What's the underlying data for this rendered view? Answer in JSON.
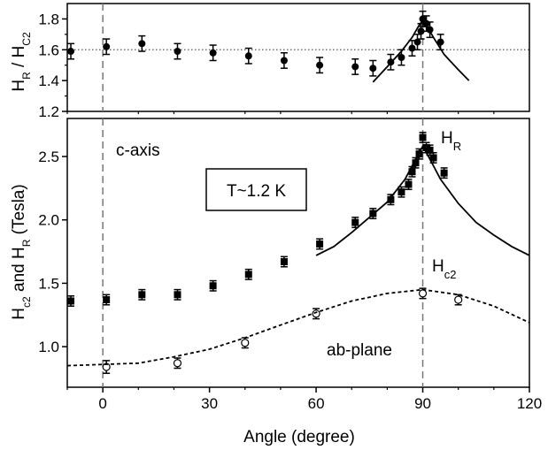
{
  "chart_data": [
    {
      "panel": "top",
      "type": "scatter",
      "ylabel": "H_R / H_C2",
      "ylim": [
        1.2,
        1.9
      ],
      "xlim": [
        -10,
        120
      ],
      "yticks": [
        1.2,
        1.4,
        1.6,
        1.8
      ],
      "reference_line_y": 1.6,
      "reference_line_style": "dotted",
      "vertical_lines_x": [
        0,
        90
      ],
      "series": [
        {
          "marker": "filled-circle",
          "points": [
            {
              "x": -9,
              "y": 1.59,
              "err": 0.05
            },
            {
              "x": 1,
              "y": 1.62,
              "err": 0.05
            },
            {
              "x": 11,
              "y": 1.64,
              "err": 0.05
            },
            {
              "x": 21,
              "y": 1.59,
              "err": 0.05
            },
            {
              "x": 31,
              "y": 1.58,
              "err": 0.05
            },
            {
              "x": 41,
              "y": 1.56,
              "err": 0.05
            },
            {
              "x": 51,
              "y": 1.53,
              "err": 0.05
            },
            {
              "x": 61,
              "y": 1.5,
              "err": 0.05
            },
            {
              "x": 71,
              "y": 1.49,
              "err": 0.05
            },
            {
              "x": 76,
              "y": 1.48,
              "err": 0.05
            },
            {
              "x": 81,
              "y": 1.52,
              "err": 0.05
            },
            {
              "x": 84,
              "y": 1.55,
              "err": 0.05
            },
            {
              "x": 87,
              "y": 1.61,
              "err": 0.05
            },
            {
              "x": 88.5,
              "y": 1.65,
              "err": 0.05
            },
            {
              "x": 89.5,
              "y": 1.72,
              "err": 0.05
            },
            {
              "x": 90,
              "y": 1.8,
              "err": 0.05
            },
            {
              "x": 91,
              "y": 1.77,
              "err": 0.05
            },
            {
              "x": 92,
              "y": 1.73,
              "err": 0.05
            },
            {
              "x": 95,
              "y": 1.65,
              "err": 0.05
            }
          ]
        },
        {
          "type": "line",
          "style": "solid",
          "points": [
            [
              76,
              1.39
            ],
            [
              80,
              1.49
            ],
            [
              84,
              1.59
            ],
            [
              87,
              1.68
            ],
            [
              89,
              1.76
            ],
            [
              90,
              1.79
            ],
            [
              91,
              1.76
            ],
            [
              93,
              1.68
            ],
            [
              96,
              1.57
            ],
            [
              100,
              1.47
            ],
            [
              103,
              1.4
            ]
          ]
        }
      ]
    },
    {
      "panel": "bottom",
      "type": "scatter",
      "xlabel": "Angle (degree)",
      "ylabel": "H_c2 and H_R (Tesla)",
      "xlim": [
        -10,
        120
      ],
      "ylim": [
        0.68,
        2.8
      ],
      "xticks": [
        0,
        30,
        60,
        90,
        120
      ],
      "yticks": [
        1.0,
        1.5,
        2.0,
        2.5
      ],
      "vertical_lines_x": [
        0,
        90
      ],
      "annotations": {
        "c_axis": "c-axis",
        "ab_plane": "ab-plane",
        "temperature": "T~1.2 K",
        "hr_main": "H",
        "hr_sub": "R",
        "hc2_main": "H",
        "hc2_sub": "c2"
      },
      "series": [
        {
          "label": "H_R",
          "marker": "filled-square",
          "points": [
            {
              "x": -9,
              "y": 1.36,
              "err": 0.04
            },
            {
              "x": 1,
              "y": 1.37,
              "err": 0.04
            },
            {
              "x": 11,
              "y": 1.41,
              "err": 0.04
            },
            {
              "x": 21,
              "y": 1.41,
              "err": 0.04
            },
            {
              "x": 31,
              "y": 1.48,
              "err": 0.04
            },
            {
              "x": 41,
              "y": 1.57,
              "err": 0.04
            },
            {
              "x": 51,
              "y": 1.67,
              "err": 0.04
            },
            {
              "x": 61,
              "y": 1.81,
              "err": 0.04
            },
            {
              "x": 71,
              "y": 1.98,
              "err": 0.04
            },
            {
              "x": 76,
              "y": 2.05,
              "err": 0.04
            },
            {
              "x": 81,
              "y": 2.16,
              "err": 0.04
            },
            {
              "x": 84,
              "y": 2.22,
              "err": 0.04
            },
            {
              "x": 86,
              "y": 2.28,
              "err": 0.04
            },
            {
              "x": 87,
              "y": 2.38,
              "err": 0.04
            },
            {
              "x": 88,
              "y": 2.45,
              "err": 0.04
            },
            {
              "x": 89,
              "y": 2.52,
              "err": 0.04
            },
            {
              "x": 90,
              "y": 2.65,
              "err": 0.04
            },
            {
              "x": 91,
              "y": 2.57,
              "err": 0.04
            },
            {
              "x": 92,
              "y": 2.55,
              "err": 0.04
            },
            {
              "x": 93,
              "y": 2.49,
              "err": 0.04
            },
            {
              "x": 96,
              "y": 2.37,
              "err": 0.04
            }
          ]
        },
        {
          "type": "line",
          "style": "solid",
          "points": [
            [
              60,
              1.72
            ],
            [
              65,
              1.79
            ],
            [
              70,
              1.9
            ],
            [
              75,
              2.02
            ],
            [
              80,
              2.14
            ],
            [
              85,
              2.32
            ],
            [
              88,
              2.48
            ],
            [
              90,
              2.58
            ],
            [
              92,
              2.48
            ],
            [
              95,
              2.32
            ],
            [
              100,
              2.13
            ],
            [
              105,
              1.98
            ],
            [
              110,
              1.88
            ],
            [
              115,
              1.79
            ],
            [
              120,
              1.72
            ]
          ]
        },
        {
          "label": "H_c2",
          "marker": "open-circle",
          "points": [
            {
              "x": 1,
              "y": 0.84,
              "err": 0.05
            },
            {
              "x": 21,
              "y": 0.87,
              "err": 0.04
            },
            {
              "x": 40,
              "y": 1.03,
              "err": 0.04
            },
            {
              "x": 60,
              "y": 1.26,
              "err": 0.04
            },
            {
              "x": 90,
              "y": 1.42,
              "err": 0.04
            },
            {
              "x": 100,
              "y": 1.37,
              "err": 0.04
            }
          ]
        },
        {
          "type": "line",
          "style": "dashed",
          "points": [
            [
              -10,
              0.85
            ],
            [
              0,
              0.86
            ],
            [
              10,
              0.87
            ],
            [
              20,
              0.92
            ],
            [
              30,
              0.98
            ],
            [
              40,
              1.07
            ],
            [
              50,
              1.17
            ],
            [
              60,
              1.27
            ],
            [
              70,
              1.36
            ],
            [
              80,
              1.42
            ],
            [
              90,
              1.45
            ],
            [
              100,
              1.41
            ],
            [
              110,
              1.32
            ],
            [
              120,
              1.19
            ]
          ]
        }
      ]
    }
  ]
}
